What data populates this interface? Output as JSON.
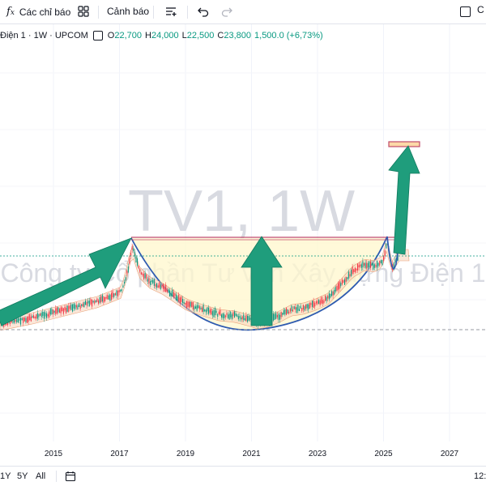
{
  "toolbar": {
    "indicators_label": "Các chỉ báo",
    "alert_label": "Cảnh báo",
    "right_fragment": "C"
  },
  "legend": {
    "symbol": "Điện 1 · 1W · UPCOM",
    "open_label": "O",
    "open": "22,700",
    "high_label": "H",
    "high": "24,000",
    "low_label": "L",
    "low": "22,500",
    "close_label": "C",
    "close": "23,800",
    "change": "1,500.0 (+6,73%)"
  },
  "watermark": {
    "title": "TV1, 1W",
    "subtitle": "Công ty Cổ phần Tư vấn Xây dựng Điện 1"
  },
  "bottombar": {
    "ranges": [
      "1Y",
      "5Y",
      "All"
    ],
    "time": "12:"
  },
  "colors": {
    "up": "#089981",
    "down": "#f23645",
    "arrow": "#1f9d7c",
    "cup_fill": "#fff7cc",
    "cup_line": "#2f5bb0",
    "cloud": "#f7d3b9"
  },
  "chart_data": {
    "type": "candlestick",
    "x_ticks": [
      "2015",
      "2017",
      "2019",
      "2021",
      "2023",
      "2025",
      "2027"
    ]
  }
}
